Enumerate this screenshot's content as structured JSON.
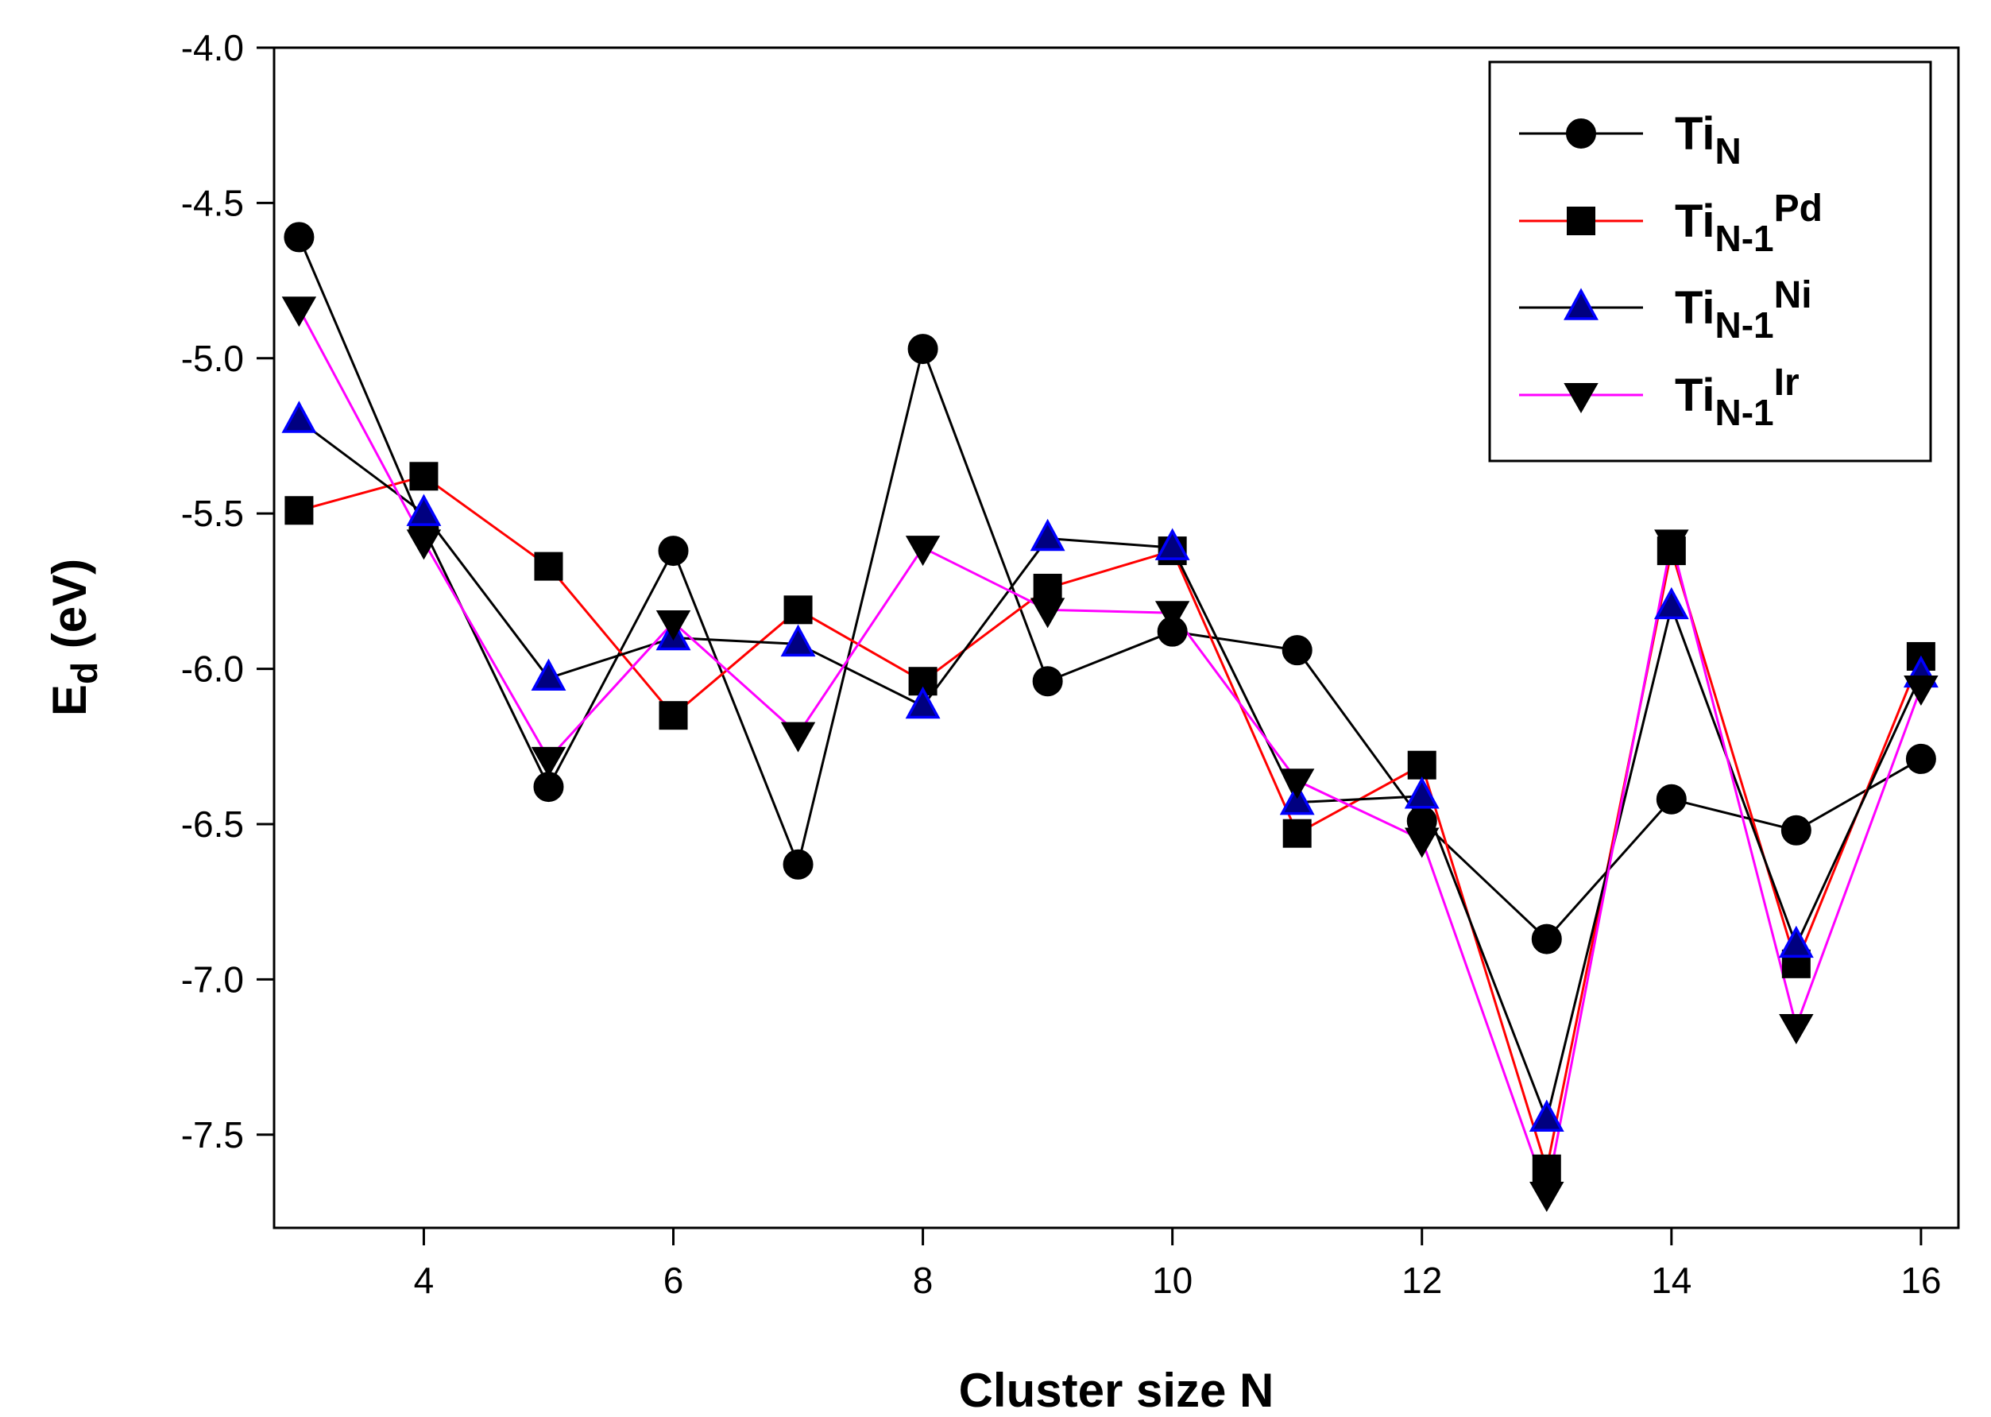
{
  "chart_data": {
    "type": "line",
    "title": "",
    "xlabel": "Cluster size N",
    "ylabel": {
      "main": "E",
      "sub": "d",
      "rest": " (eV)"
    },
    "xlim": [
      2.8,
      16.3
    ],
    "ylim": [
      -7.8,
      -4.0
    ],
    "xticks": [
      4,
      6,
      8,
      10,
      12,
      14,
      16
    ],
    "xtick_labels": [
      "4",
      "6",
      "8",
      "10",
      "12",
      "14",
      "16"
    ],
    "yticks": [
      -4.0,
      -4.5,
      -5.0,
      -5.5,
      -6.0,
      -6.5,
      -7.0,
      -7.5
    ],
    "ytick_labels": [
      "-4.0",
      "-4.5",
      "-5.0",
      "-5.5",
      "-6.0",
      "-6.5",
      "-7.0",
      "-7.5"
    ],
    "grid": false,
    "legend_position": "top-right",
    "x": [
      3,
      4,
      5,
      6,
      7,
      8,
      9,
      10,
      11,
      12,
      13,
      14,
      15,
      16
    ],
    "series": [
      {
        "name": "TiN",
        "label_main": "Ti",
        "label_sub": "N",
        "label_sup": "",
        "line_color": "#000000",
        "marker": "circle",
        "marker_fill": "#000000",
        "marker_stroke": "#000000",
        "values": [
          -4.61,
          -5.55,
          -6.38,
          -5.62,
          -6.63,
          -4.97,
          -6.04,
          -5.88,
          -5.94,
          -6.49,
          -6.87,
          -6.42,
          -6.52,
          -6.29
        ]
      },
      {
        "name": "TiN-1Pd",
        "label_main": "Ti",
        "label_sub": "N-1",
        "label_sup": "Pd",
        "line_color": "#ff0000",
        "marker": "square",
        "marker_fill": "#000000",
        "marker_stroke": "#000000",
        "values": [
          -5.49,
          -5.38,
          -5.67,
          -6.15,
          -5.81,
          -6.04,
          -5.74,
          -5.62,
          -6.53,
          -6.31,
          -7.61,
          -5.62,
          -6.95,
          -5.96
        ]
      },
      {
        "name": "TiN-1Ni",
        "label_main": "Ti",
        "label_sub": "N-1",
        "label_sup": "Ni",
        "line_color": "#000000",
        "marker": "triangle-up",
        "marker_fill": "#000080",
        "marker_stroke": "#0000ff",
        "values": [
          -5.2,
          -5.5,
          -6.03,
          -5.9,
          -5.92,
          -6.12,
          -5.58,
          -5.61,
          -6.43,
          -6.41,
          -7.45,
          -5.8,
          -6.89,
          -6.02
        ]
      },
      {
        "name": "TiN-1Ir",
        "label_main": "Ti",
        "label_sub": "N-1",
        "label_sup": "Ir",
        "line_color": "#ff00ff",
        "marker": "triangle-down",
        "marker_fill": "#000000",
        "marker_stroke": "#000000",
        "values": [
          -4.84,
          -5.59,
          -6.29,
          -5.85,
          -6.21,
          -5.61,
          -5.81,
          -5.82,
          -6.36,
          -6.55,
          -7.69,
          -5.59,
          -7.15,
          -6.06
        ]
      }
    ]
  }
}
